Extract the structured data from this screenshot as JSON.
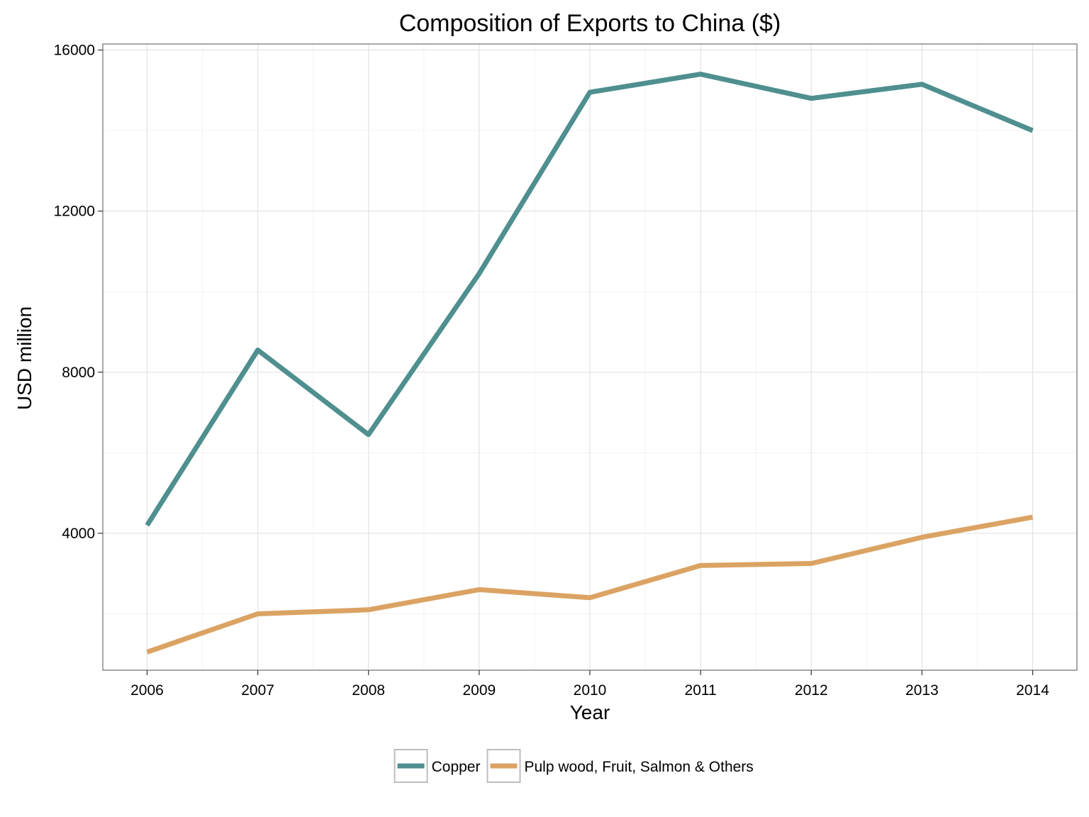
{
  "chart_data": {
    "type": "line",
    "title": "Composition of Exports to China ($)",
    "xlabel": "Year",
    "ylabel": "USD million",
    "x": [
      2006,
      2007,
      2008,
      2009,
      2010,
      2011,
      2012,
      2013,
      2014
    ],
    "y_ticks": [
      4000,
      8000,
      12000,
      16000
    ],
    "xlim": [
      2005.6,
      2014.4
    ],
    "ylim": [
      600,
      16150
    ],
    "grid": true,
    "legend_position": "bottom",
    "series": [
      {
        "name": "Copper",
        "color": "#4f8f8f",
        "values": [
          4200,
          8550,
          6450,
          10450,
          14950,
          15400,
          14800,
          15150,
          14000
        ]
      },
      {
        "name": "Pulp wood, Fruit, Salmon & Others",
        "color": "#dba363",
        "values": [
          1050,
          2000,
          2100,
          2600,
          2400,
          3200,
          3250,
          3900,
          4400
        ]
      }
    ]
  }
}
